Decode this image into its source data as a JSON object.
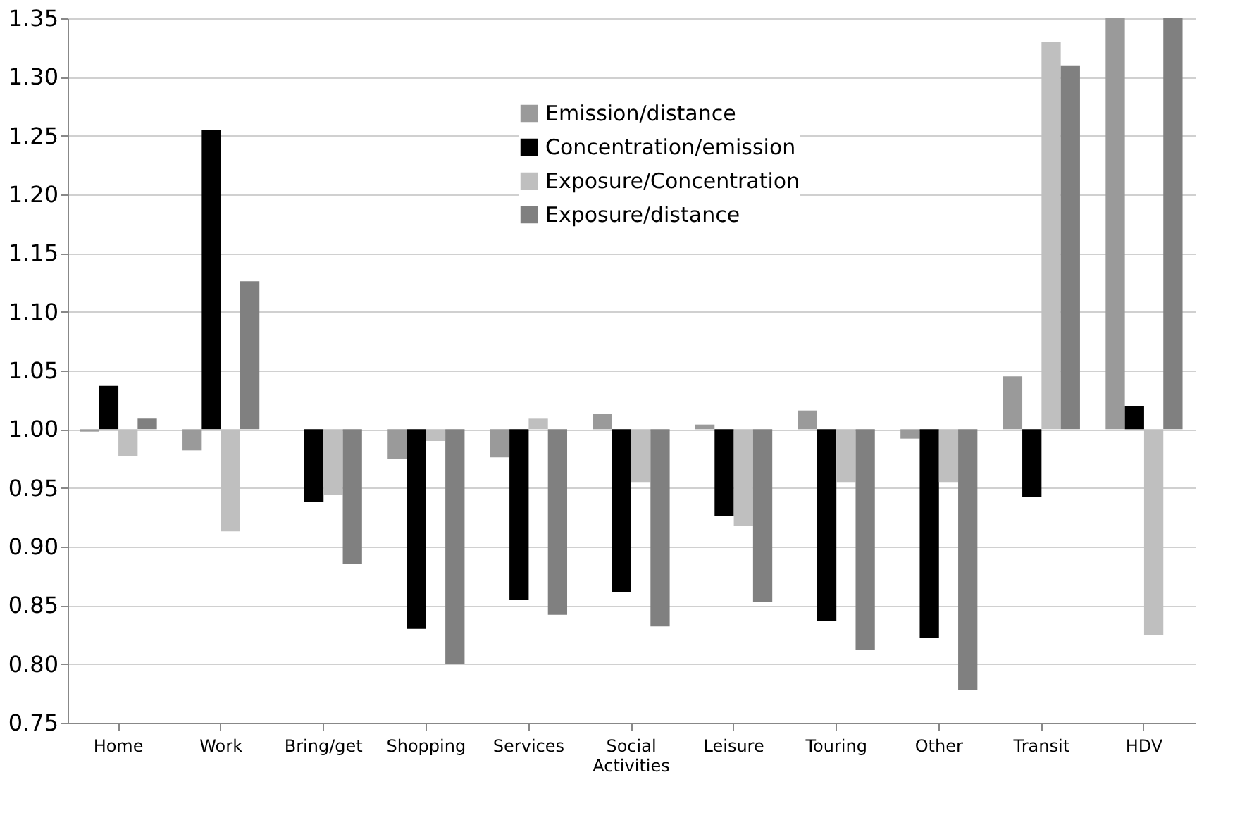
{
  "chart_data": {
    "type": "bar",
    "categories": [
      "Home",
      "Work",
      "Bring/get",
      "Shopping",
      "Services",
      "Social Activities",
      "Leisure",
      "Touring",
      "Other",
      "Transit",
      "HDV"
    ],
    "series": [
      {
        "name": "Emission/distance",
        "color": "#9a9a9a",
        "base": [
          1.0,
          1.0,
          null,
          1.0,
          1.0,
          1.0,
          1.0,
          1.0,
          1.0,
          1.0,
          1.0
        ],
        "values": [
          -0.002,
          -0.018,
          null,
          -0.025,
          -0.024,
          0.013,
          0.004,
          0.016,
          -0.008,
          0.045,
          0.35
        ]
      },
      {
        "name": "Concentration/emission",
        "color": "#000000",
        "base": [
          1.0,
          1.0,
          1.0,
          1.0,
          1.0,
          1.0,
          1.0,
          1.0,
          1.0,
          1.0,
          1.0
        ],
        "values": [
          0.037,
          0.255,
          -0.062,
          -0.17,
          -0.145,
          -0.139,
          -0.074,
          -0.163,
          -0.178,
          -0.058,
          0.02
        ]
      },
      {
        "name": "Exposure/Concentration",
        "color": "#bfbfbf",
        "base": [
          1.0,
          1.0,
          1.0,
          1.0,
          1.0,
          1.0,
          1.0,
          1.0,
          1.0,
          1.0,
          1.0
        ],
        "values": [
          -0.023,
          -0.087,
          -0.056,
          -0.01,
          0.009,
          -0.045,
          -0.082,
          -0.045,
          -0.045,
          0.33,
          -0.175
        ]
      },
      {
        "name": "Exposure/distance",
        "color": "#808080",
        "base": [
          1.0,
          1.0,
          1.0,
          1.0,
          1.0,
          1.0,
          1.0,
          1.0,
          1.0,
          1.0,
          1.0
        ],
        "values": [
          0.009,
          0.126,
          -0.115,
          -0.2,
          -0.158,
          -0.168,
          -0.147,
          -0.188,
          -0.222,
          0.31,
          0.35
        ]
      }
    ],
    "ylim": [
      0.75,
      1.35
    ],
    "yticks": [
      {
        "value": 0.75,
        "label": "0.75"
      },
      {
        "value": 0.8,
        "label": "0.80"
      },
      {
        "value": 0.85,
        "label": "0.85"
      },
      {
        "value": 0.9,
        "label": "0.90"
      },
      {
        "value": 0.95,
        "label": "0.95"
      },
      {
        "value": 1.0,
        "label": "1.00"
      },
      {
        "value": 1.05,
        "label": "1.05"
      },
      {
        "value": 1.1,
        "label": "1.10"
      },
      {
        "value": 1.15,
        "label": "1.15"
      },
      {
        "value": 1.2,
        "label": "1.20"
      },
      {
        "value": 1.25,
        "label": "1.25"
      },
      {
        "value": 1.3,
        "label": "1.30"
      },
      {
        "value": 1.35,
        "label": "1.35"
      }
    ],
    "grid": "y",
    "legend": "top"
  }
}
